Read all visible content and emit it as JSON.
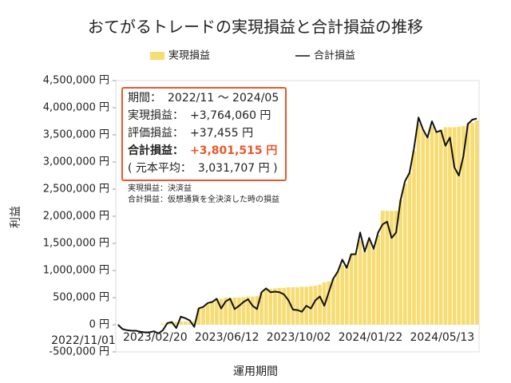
{
  "chart_data": {
    "type": "bar_line",
    "title": "おてがるトレードの実現損益と合計損益の推移",
    "x_label": "運用期間",
    "y_label": "利益",
    "categories": [
      "2022/11/01",
      null,
      null,
      null,
      null,
      null,
      null,
      null,
      null,
      null,
      null,
      null,
      null,
      null,
      null,
      null,
      "2023/02/20",
      null,
      null,
      null,
      null,
      null,
      null,
      null,
      null,
      null,
      null,
      null,
      null,
      null,
      null,
      null,
      "2023/06/12",
      null,
      null,
      null,
      null,
      null,
      null,
      null,
      null,
      null,
      null,
      null,
      null,
      null,
      null,
      null,
      "2023/10/02",
      null,
      null,
      null,
      null,
      null,
      null,
      null,
      null,
      null,
      null,
      null,
      null,
      null,
      null,
      null,
      "2024/01/22",
      null,
      null,
      null,
      null,
      null,
      null,
      null,
      null,
      null,
      null,
      null,
      null,
      null,
      null,
      null,
      "2024/05/13"
    ],
    "series": [
      {
        "name": "実現損益",
        "kind": "bar",
        "color": "#f7dc72",
        "values": [
          0,
          0,
          0,
          0,
          0,
          0,
          0,
          0,
          0,
          0,
          20000,
          40000,
          50000,
          50000,
          60000,
          60000,
          60000,
          60000,
          300000,
          320000,
          380000,
          420000,
          480000,
          480000,
          500000,
          500000,
          500000,
          500000,
          510000,
          520000,
          520000,
          530000,
          600000,
          650000,
          660000,
          670000,
          680000,
          680000,
          690000,
          690000,
          690000,
          700000,
          700000,
          710000,
          720000,
          740000,
          780000,
          800000,
          850000,
          980000,
          1100000,
          1100000,
          1300000,
          1300000,
          1550000,
          1350000,
          1550000,
          1400000,
          1650000,
          2100000,
          2100000,
          2100000,
          2100000,
          2300000,
          2600000,
          2800000,
          3200000,
          3700000,
          3600000,
          3450000,
          3650000,
          3550000,
          3600000,
          3640000,
          3640000,
          3640000,
          3650000,
          3660000,
          3700000,
          3720000,
          3764060
        ]
      },
      {
        "name": "合計損益",
        "kind": "line",
        "color": "#111111",
        "values": [
          0,
          -80000,
          -100000,
          -110000,
          -110000,
          -130000,
          -140000,
          -140000,
          -120000,
          -160000,
          -100000,
          30000,
          50000,
          -60000,
          150000,
          120000,
          80000,
          -40000,
          300000,
          330000,
          400000,
          420000,
          480000,
          300000,
          430000,
          480000,
          290000,
          350000,
          420000,
          470000,
          350000,
          290000,
          600000,
          670000,
          600000,
          610000,
          600000,
          560000,
          450000,
          280000,
          270000,
          240000,
          350000,
          300000,
          450000,
          520000,
          350000,
          600000,
          850000,
          980000,
          1200000,
          1050000,
          1300000,
          1300000,
          1700000,
          1350000,
          1600000,
          1400000,
          1700000,
          1850000,
          1900000,
          1600000,
          1700000,
          2300000,
          2650000,
          2800000,
          3250000,
          3820000,
          3600000,
          3450000,
          3750000,
          3550000,
          3580000,
          3300000,
          3450000,
          2900000,
          2750000,
          3100000,
          3700000,
          3780000,
          3801515
        ]
      }
    ],
    "ylim": [
      -500000,
      4500000
    ],
    "yticks": [
      {
        "value": -500000,
        "label": "-500,000 円"
      },
      {
        "value": 0,
        "label": "0 円"
      },
      {
        "value": 500000,
        "label": "500,000 円"
      },
      {
        "value": 1000000,
        "label": "1,000,000 円"
      },
      {
        "value": 1500000,
        "label": "1,500,000 円"
      },
      {
        "value": 2000000,
        "label": "2,000,000 円"
      },
      {
        "value": 2500000,
        "label": "2,500,000 円"
      },
      {
        "value": 3000000,
        "label": "3,000,000 円"
      },
      {
        "value": 3500000,
        "label": "3,500,000 円"
      },
      {
        "value": 4000000,
        "label": "4,000,000 円"
      },
      {
        "value": 4500000,
        "label": "4,500,000 円"
      }
    ],
    "info_box": [
      {
        "label": "期間：",
        "value": "2022/11 ～ 2024/05"
      },
      {
        "label": "実現損益：",
        "value": "+3,764,060 円"
      },
      {
        "label": "評価損益：",
        "value": "+37,455 円"
      },
      {
        "label": "合計損益：",
        "value": "+3,801,515 円",
        "highlight": true
      },
      {
        "label": "( 元本平均：",
        "value": "3,031,707 円 )"
      }
    ],
    "notes": [
      "実現損益：決済益",
      "合計損益：仮想通貨を全決済した時の損益"
    ]
  }
}
